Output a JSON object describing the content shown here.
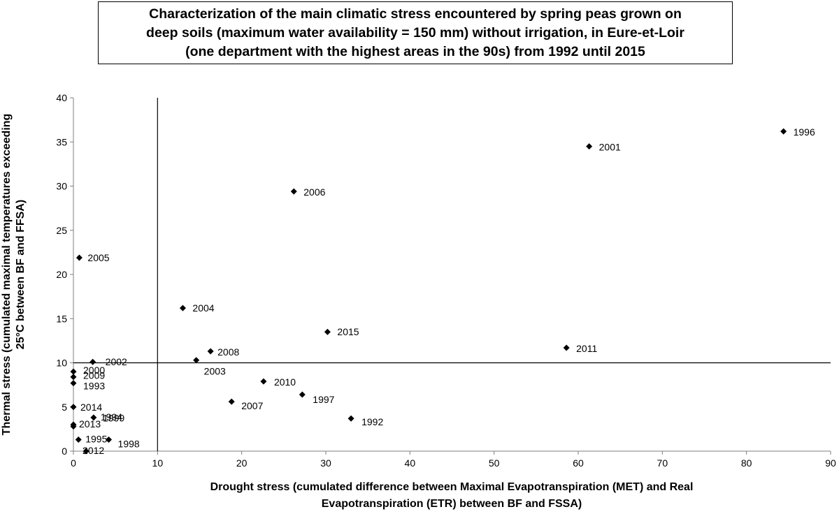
{
  "chart_data": {
    "type": "scatter",
    "title_lines": [
      "Characterization of the main climatic stress encountered by spring peas grown on",
      "deep soils (maximum water availability = 150 mm) without irrigation, in Eure-et-Loir",
      "(one department with the highest areas in the 90s) from 1992 until 2015"
    ],
    "xlabel_lines": [
      "Drought stress  (cumulated difference between Maximal Evapotranspiration (MET) and Real",
      "Evapotranspiration (ETR) between BF and FSSA)"
    ],
    "ylabel_lines": [
      "Thermal stress (cumulated maximal temperatures exceeding",
      "25°C between BF and FFSA)"
    ],
    "xlim": [
      0,
      90
    ],
    "ylim": [
      0,
      40
    ],
    "xticks": [
      0,
      10,
      20,
      30,
      40,
      50,
      60,
      70,
      80,
      90
    ],
    "yticks": [
      0,
      5,
      10,
      15,
      20,
      25,
      30,
      35,
      40
    ],
    "grid": false,
    "reference_lines": {
      "vertical_x": 10,
      "horizontal_y": 10
    },
    "marker_color": "#000000",
    "points": [
      {
        "label": "1996",
        "x": 84.4,
        "y": 36.2
      },
      {
        "label": "2001",
        "x": 61.3,
        "y": 34.5
      },
      {
        "label": "2006",
        "x": 26.2,
        "y": 29.4
      },
      {
        "label": "2005",
        "x": 0.7,
        "y": 21.9
      },
      {
        "label": "2004",
        "x": 13.0,
        "y": 16.2
      },
      {
        "label": "2015",
        "x": 30.2,
        "y": 13.5
      },
      {
        "label": "2011",
        "x": 58.6,
        "y": 11.7
      },
      {
        "label": "2008",
        "x": 16.3,
        "y": 11.3
      },
      {
        "label": "2003",
        "x": 14.6,
        "y": 10.3
      },
      {
        "label": "2002",
        "x": 2.3,
        "y": 10.1
      },
      {
        "label": "2000",
        "x": 0.0,
        "y": 9.0
      },
      {
        "label": "1993",
        "x": 0.0,
        "y": 7.7
      },
      {
        "label": "2010",
        "x": 22.6,
        "y": 7.9
      },
      {
        "label": "1997",
        "x": 27.2,
        "y": 6.4
      },
      {
        "label": "2007",
        "x": 18.8,
        "y": 5.6
      },
      {
        "label": "2009",
        "x": 0.0,
        "y": 8.4
      },
      {
        "label": "2014",
        "x": 0.0,
        "y": 5.0
      },
      {
        "label": "1994",
        "x": 2.4,
        "y": 3.8
      },
      {
        "label": "1992",
        "x": 33.0,
        "y": 3.7
      },
      {
        "label": "2013",
        "x": 0.0,
        "y": 3.0
      },
      {
        "label": "1999",
        "x": 0.0,
        "y": 2.8
      },
      {
        "label": "1995",
        "x": 0.6,
        "y": 1.3
      },
      {
        "label": "1998",
        "x": 4.2,
        "y": 1.3
      },
      {
        "label": "2012",
        "x": 1.5,
        "y": 0.0
      }
    ]
  }
}
